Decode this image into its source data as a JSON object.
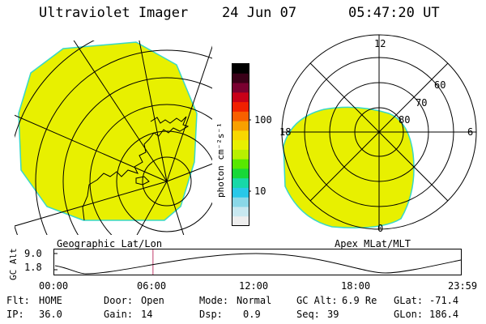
{
  "header": {
    "title": "Ultraviolet Imager",
    "date": "24 Jun 07",
    "time": "05:47:20 UT"
  },
  "colors": {
    "auroral_fill": "#e8f000",
    "fill_edge": "#38d8c8",
    "grid": "#000000",
    "time_marker": "#c03a6a"
  },
  "left_panel": {
    "caption": "Geographic Lat/Lon"
  },
  "right_panel": {
    "caption": "Apex MLat/MLT",
    "mlt_labels": {
      "top": "12",
      "left": "18",
      "right": "6",
      "bottom": "0"
    },
    "lat_labels": [
      "60",
      "70",
      "80"
    ]
  },
  "colorbar": {
    "unit_label": "photon cm⁻²s⁻¹",
    "ticks": [
      "100",
      "10"
    ],
    "stops": [
      "#000000",
      "#3a0018",
      "#7a0030",
      "#c80018",
      "#f02000",
      "#f86000",
      "#f8a000",
      "#f8d800",
      "#e8f000",
      "#b8f000",
      "#58e800",
      "#18d838",
      "#18d8a8",
      "#28c8e8",
      "#8ad8e8",
      "#c8e8f0",
      "#eeeeee"
    ]
  },
  "altitude_plot": {
    "ylabel": "GC Alt",
    "yticks": [
      "9.0",
      "1.8"
    ],
    "xticks": [
      "00:00",
      "06:00",
      "12:00",
      "18:00",
      "23:59"
    ],
    "marker_time_hours": 5.79
  },
  "info": {
    "flt_label": "Flt:",
    "flt_value": "HOME",
    "ip_label": "IP:",
    "ip_value": "36.0",
    "door_label": "Door:",
    "door_value": "Open",
    "gain_label": "Gain:",
    "gain_value": "14",
    "mode_label": "Mode:",
    "mode_value": "Normal",
    "dsp_label": "Dsp:",
    "dsp_value": "0.9",
    "gcalt_label": "GC Alt:",
    "gcalt_value": "6.9 Re",
    "seq_label": "Seq:",
    "seq_value": "39",
    "glat_label": "GLat:",
    "glat_value": "-71.4",
    "glon_label": "GLon:",
    "glon_value": "186.4"
  }
}
